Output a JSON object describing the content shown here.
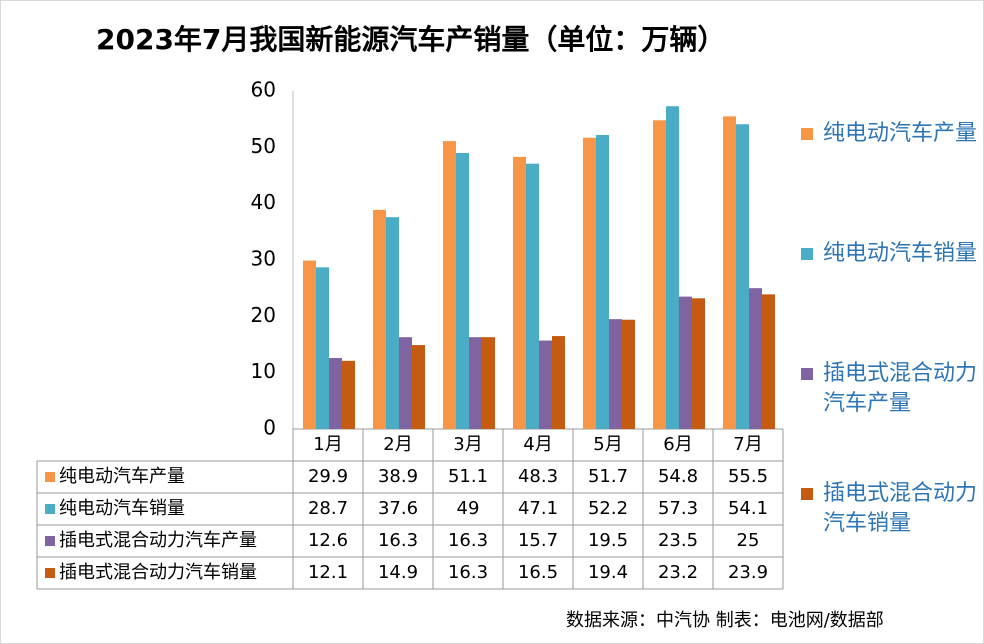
{
  "chart_data": {
    "type": "bar",
    "title": "2023年7月我国新能源汽车产销量（单位：万辆）",
    "categories": [
      "1月",
      "2月",
      "3月",
      "4月",
      "5月",
      "6月",
      "7月"
    ],
    "series": [
      {
        "name": "纯电动汽车产量",
        "color": "#f79646",
        "values": [
          29.9,
          38.9,
          51.1,
          48.3,
          51.7,
          54.8,
          55.5
        ]
      },
      {
        "name": "纯电动汽车销量",
        "color": "#4bacc6",
        "values": [
          28.7,
          37.6,
          49,
          47.1,
          52.2,
          57.3,
          54.1
        ]
      },
      {
        "name": "插电式混合动力汽车产量",
        "color": "#8064a2",
        "values": [
          12.6,
          16.3,
          16.3,
          15.7,
          19.5,
          23.5,
          25
        ]
      },
      {
        "name": "插电式混合动力汽车销量",
        "color": "#c55a11",
        "values": [
          12.1,
          14.9,
          16.3,
          16.5,
          19.4,
          23.2,
          23.9
        ]
      }
    ],
    "ylim": [
      0,
      60
    ],
    "yticks": [
      0,
      10,
      20,
      30,
      40,
      50,
      60
    ],
    "grid": false,
    "legend": "right",
    "source": "数据来源：中汽协 制表：电池网/数据部"
  }
}
